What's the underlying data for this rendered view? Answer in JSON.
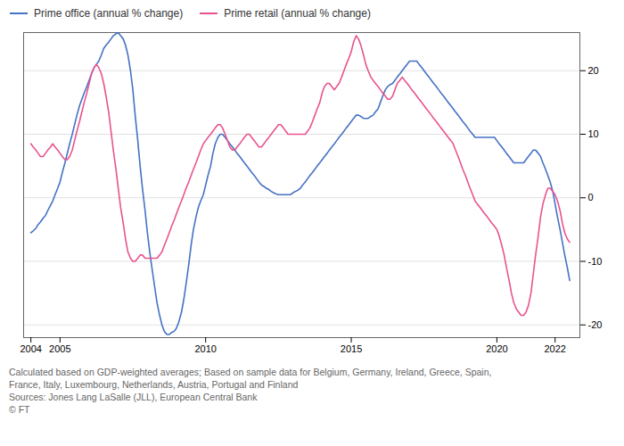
{
  "chart_data": {
    "type": "line",
    "legend": "upper left",
    "grid": true,
    "xlim": [
      2003.75,
      2022.85
    ],
    "xticks": [
      2004,
      2005,
      2010,
      2015,
      2020,
      2022
    ],
    "ylim": [
      -22,
      26
    ],
    "yticks": [
      -20,
      -10,
      0,
      10,
      20
    ],
    "annotations": [
      "Calculated based on GDP-weighted averages; Based on sample data for Belgium, Germany, Ireland, Greece, Spain,",
      "France, Italy, Luxembourg, Netherlands, Austria, Portugal and Finland",
      "Sources: Jones Lang LaSalle (JLL), European Central Bank",
      "© FT"
    ],
    "x": [
      2004.0,
      2004.08,
      2004.17,
      2004.25,
      2004.33,
      2004.42,
      2004.5,
      2004.58,
      2004.67,
      2004.75,
      2004.83,
      2004.92,
      2005.0,
      2005.08,
      2005.17,
      2005.25,
      2005.33,
      2005.42,
      2005.5,
      2005.58,
      2005.67,
      2005.75,
      2005.83,
      2005.92,
      2006.0,
      2006.08,
      2006.17,
      2006.25,
      2006.33,
      2006.42,
      2006.5,
      2006.58,
      2006.67,
      2006.75,
      2006.83,
      2006.92,
      2007.0,
      2007.08,
      2007.17,
      2007.25,
      2007.33,
      2007.42,
      2007.5,
      2007.58,
      2007.67,
      2007.75,
      2007.83,
      2007.92,
      2008.0,
      2008.08,
      2008.17,
      2008.25,
      2008.33,
      2008.42,
      2008.5,
      2008.58,
      2008.67,
      2008.75,
      2008.83,
      2008.92,
      2009.0,
      2009.08,
      2009.17,
      2009.25,
      2009.33,
      2009.42,
      2009.5,
      2009.58,
      2009.67,
      2009.75,
      2009.83,
      2009.92,
      2010.0,
      2010.08,
      2010.17,
      2010.25,
      2010.33,
      2010.42,
      2010.5,
      2010.58,
      2010.67,
      2010.75,
      2010.83,
      2010.92,
      2011.0,
      2011.08,
      2011.17,
      2011.25,
      2011.33,
      2011.42,
      2011.5,
      2011.58,
      2011.67,
      2011.75,
      2011.83,
      2011.92,
      2012.0,
      2012.08,
      2012.17,
      2012.25,
      2012.33,
      2012.42,
      2012.5,
      2012.58,
      2012.67,
      2012.75,
      2012.83,
      2012.92,
      2013.0,
      2013.08,
      2013.17,
      2013.25,
      2013.33,
      2013.42,
      2013.5,
      2013.58,
      2013.67,
      2013.75,
      2013.83,
      2013.92,
      2014.0,
      2014.08,
      2014.17,
      2014.25,
      2014.33,
      2014.42,
      2014.5,
      2014.58,
      2014.67,
      2014.75,
      2014.83,
      2014.92,
      2015.0,
      2015.08,
      2015.17,
      2015.25,
      2015.33,
      2015.42,
      2015.5,
      2015.58,
      2015.67,
      2015.75,
      2015.83,
      2015.92,
      2016.0,
      2016.08,
      2016.17,
      2016.25,
      2016.33,
      2016.42,
      2016.5,
      2016.58,
      2016.67,
      2016.75,
      2016.83,
      2016.92,
      2017.0,
      2017.08,
      2017.17,
      2017.25,
      2017.33,
      2017.42,
      2017.5,
      2017.58,
      2017.67,
      2017.75,
      2017.83,
      2017.92,
      2018.0,
      2018.08,
      2018.17,
      2018.25,
      2018.33,
      2018.42,
      2018.5,
      2018.58,
      2018.67,
      2018.75,
      2018.83,
      2018.92,
      2019.0,
      2019.08,
      2019.17,
      2019.25,
      2019.33,
      2019.42,
      2019.5,
      2019.58,
      2019.67,
      2019.75,
      2019.83,
      2019.92,
      2020.0,
      2020.08,
      2020.17,
      2020.25,
      2020.33,
      2020.42,
      2020.5,
      2020.58,
      2020.67,
      2020.75,
      2020.83,
      2020.92,
      2021.0,
      2021.08,
      2021.17,
      2021.25,
      2021.33,
      2021.42,
      2021.5,
      2021.58,
      2021.67,
      2021.75,
      2021.83,
      2021.92,
      2022.0,
      2022.08,
      2022.17,
      2022.25,
      2022.33,
      2022.42,
      2022.5
    ],
    "series": [
      {
        "name": "Prime office (annual % change)",
        "color": "#4472c4",
        "values": [
          -5.5,
          -5.2,
          -4.8,
          -4.2,
          -3.8,
          -3.2,
          -2.8,
          -2.0,
          -1.2,
          -0.5,
          0.5,
          1.5,
          2.5,
          4.0,
          5.5,
          7.0,
          8.5,
          10.0,
          11.5,
          13.0,
          14.5,
          15.5,
          16.5,
          17.5,
          18.5,
          19.5,
          20.5,
          21.0,
          21.5,
          22.5,
          23.5,
          24.0,
          24.5,
          25.0,
          25.5,
          25.8,
          26.0,
          25.5,
          25.0,
          24.0,
          22.5,
          20.0,
          17.0,
          13.0,
          9.0,
          5.0,
          1.5,
          -2.0,
          -5.5,
          -8.5,
          -11.5,
          -14.0,
          -16.5,
          -18.5,
          -20.0,
          -21.0,
          -21.5,
          -21.5,
          -21.2,
          -21.0,
          -20.5,
          -19.5,
          -18.0,
          -16.0,
          -13.5,
          -10.5,
          -7.5,
          -5.0,
          -3.0,
          -1.5,
          -0.5,
          0.5,
          2.0,
          3.5,
          5.0,
          7.0,
          8.5,
          9.5,
          10.0,
          10.0,
          9.5,
          9.0,
          8.5,
          8.0,
          7.5,
          7.0,
          6.5,
          6.0,
          5.5,
          5.0,
          4.5,
          4.0,
          3.5,
          3.0,
          2.5,
          2.0,
          1.8,
          1.5,
          1.3,
          1.0,
          0.8,
          0.6,
          0.5,
          0.5,
          0.5,
          0.5,
          0.5,
          0.5,
          0.8,
          1.0,
          1.2,
          1.5,
          2.0,
          2.5,
          3.0,
          3.5,
          4.0,
          4.5,
          5.0,
          5.5,
          6.0,
          6.5,
          7.0,
          7.5,
          8.0,
          8.5,
          9.0,
          9.5,
          10.0,
          10.5,
          11.0,
          11.5,
          12.0,
          12.5,
          13.0,
          13.0,
          12.8,
          12.5,
          12.5,
          12.5,
          12.8,
          13.0,
          13.5,
          14.0,
          15.0,
          16.0,
          17.0,
          17.5,
          17.8,
          18.0,
          18.5,
          19.0,
          19.5,
          20.0,
          20.5,
          21.0,
          21.5,
          21.5,
          21.5,
          21.5,
          21.0,
          20.5,
          20.0,
          19.5,
          19.0,
          18.5,
          18.0,
          17.5,
          17.0,
          16.5,
          16.0,
          15.5,
          15.0,
          14.5,
          14.0,
          13.5,
          13.0,
          12.5,
          12.0,
          11.5,
          11.0,
          10.5,
          10.0,
          9.5,
          9.5,
          9.5,
          9.5,
          9.5,
          9.5,
          9.5,
          9.5,
          9.5,
          9.0,
          8.5,
          8.0,
          7.5,
          7.0,
          6.5,
          6.0,
          5.5,
          5.5,
          5.5,
          5.5,
          5.5,
          6.0,
          6.5,
          7.0,
          7.5,
          7.5,
          7.0,
          6.5,
          5.5,
          4.5,
          3.5,
          2.5,
          1.0,
          -1.0,
          -3.0,
          -5.0,
          -7.0,
          -9.0,
          -11.0,
          -13.0
        ]
      },
      {
        "name": "Prime retail (annual % change)",
        "color": "#e8538f",
        "values": [
          8.5,
          8.0,
          7.5,
          7.0,
          6.5,
          6.5,
          7.0,
          7.5,
          8.0,
          8.5,
          8.0,
          7.5,
          7.0,
          6.5,
          6.0,
          6.0,
          6.5,
          7.5,
          9.0,
          10.5,
          12.0,
          13.5,
          15.0,
          16.5,
          18.0,
          19.5,
          20.5,
          21.0,
          20.5,
          19.5,
          18.0,
          16.0,
          13.5,
          10.5,
          7.5,
          4.5,
          1.5,
          -1.5,
          -4.0,
          -6.5,
          -8.5,
          -9.5,
          -10.0,
          -10.0,
          -9.5,
          -9.0,
          -9.0,
          -9.5,
          -9.5,
          -9.5,
          -9.5,
          -9.5,
          -9.5,
          -9.0,
          -8.5,
          -7.5,
          -6.5,
          -5.5,
          -4.5,
          -3.5,
          -2.5,
          -1.5,
          -0.5,
          0.5,
          1.5,
          2.5,
          3.5,
          4.5,
          5.5,
          6.5,
          7.5,
          8.5,
          9.0,
          9.5,
          10.0,
          10.5,
          11.0,
          11.5,
          11.5,
          11.0,
          10.0,
          9.0,
          8.0,
          7.5,
          7.5,
          8.0,
          8.5,
          9.0,
          9.5,
          10.0,
          10.0,
          9.5,
          9.0,
          8.5,
          8.0,
          8.0,
          8.5,
          9.0,
          9.5,
          10.0,
          10.5,
          11.0,
          11.5,
          11.5,
          11.0,
          10.5,
          10.0,
          10.0,
          10.0,
          10.0,
          10.0,
          10.0,
          10.0,
          10.0,
          10.5,
          11.0,
          12.0,
          13.0,
          14.0,
          15.0,
          16.5,
          17.5,
          18.0,
          18.0,
          17.5,
          17.0,
          17.5,
          18.0,
          19.0,
          20.0,
          21.0,
          22.0,
          23.0,
          24.5,
          25.5,
          25.0,
          24.0,
          22.5,
          21.0,
          20.0,
          19.0,
          18.5,
          18.0,
          17.5,
          17.0,
          16.5,
          16.0,
          15.5,
          15.5,
          16.0,
          17.0,
          18.0,
          18.5,
          19.0,
          18.5,
          18.0,
          17.5,
          17.0,
          16.5,
          16.0,
          15.5,
          15.0,
          14.5,
          14.0,
          13.5,
          13.0,
          12.5,
          12.0,
          11.5,
          11.0,
          10.5,
          10.0,
          9.5,
          9.0,
          8.5,
          7.5,
          6.5,
          5.5,
          4.5,
          3.5,
          2.5,
          1.5,
          0.5,
          -0.5,
          -1.0,
          -1.5,
          -2.0,
          -2.5,
          -3.0,
          -3.5,
          -4.0,
          -4.5,
          -5.0,
          -6.0,
          -7.5,
          -9.0,
          -11.0,
          -13.0,
          -15.0,
          -16.5,
          -17.5,
          -18.0,
          -18.5,
          -18.5,
          -18.0,
          -17.0,
          -15.0,
          -12.0,
          -9.0,
          -6.0,
          -3.0,
          -1.0,
          0.5,
          1.5,
          1.5,
          1.0,
          0.5,
          -0.5,
          -2.0,
          -4.0,
          -5.5,
          -6.5,
          -7.0
        ]
      }
    ]
  }
}
